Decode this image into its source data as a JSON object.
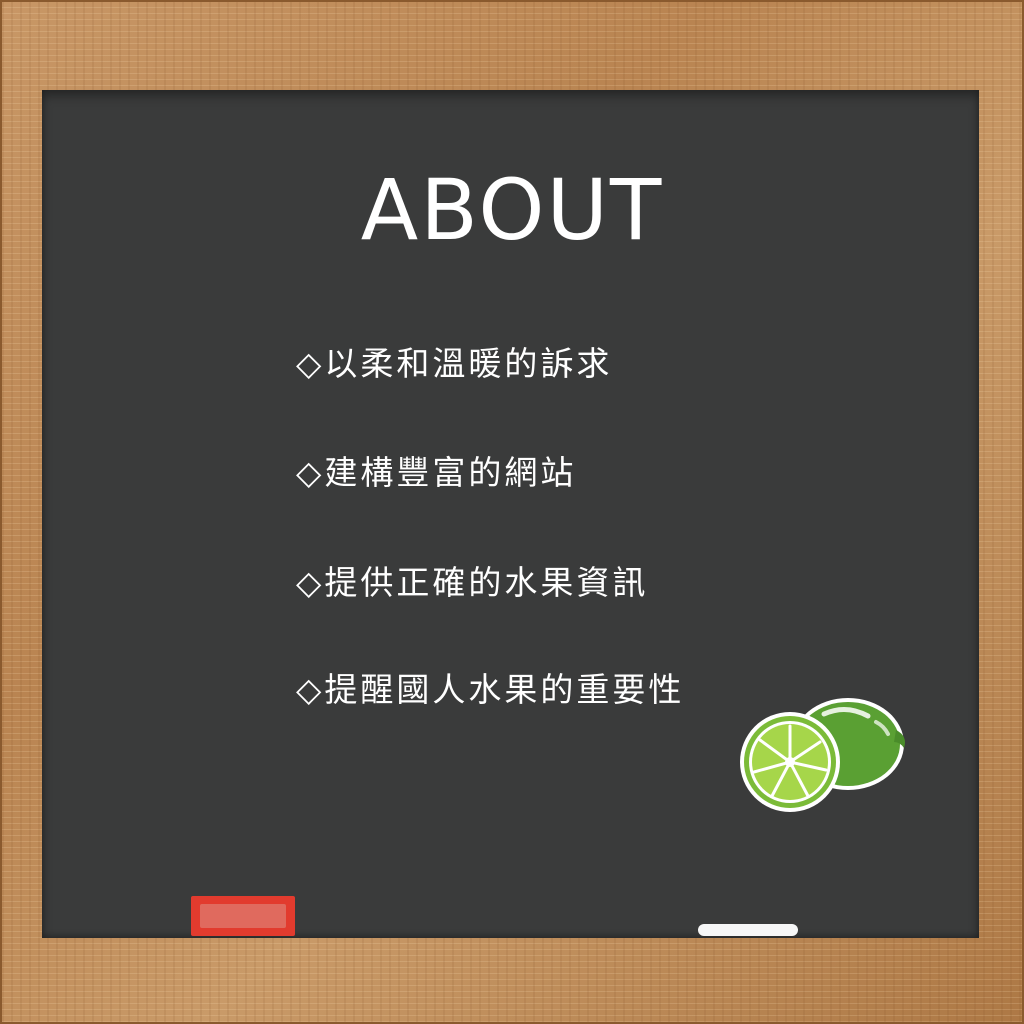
{
  "title": "ABOUT",
  "items": [
    {
      "label": "◇以柔和溫暖的訴求"
    },
    {
      "label": "◇建構豐富的網站"
    },
    {
      "label": "◇提供正確的水果資訊"
    },
    {
      "label": "◇提醒國人水果的重要性"
    }
  ],
  "icons": {
    "lime": "lime-icon",
    "eraser": "eraser-icon",
    "chalk": "chalk-icon"
  },
  "colors": {
    "board": "#3a3b3b",
    "frame": "#b98451",
    "eraser": "#e23b2e",
    "lime_peel": "#5aa033",
    "lime_flesh": "#a6d64a"
  }
}
